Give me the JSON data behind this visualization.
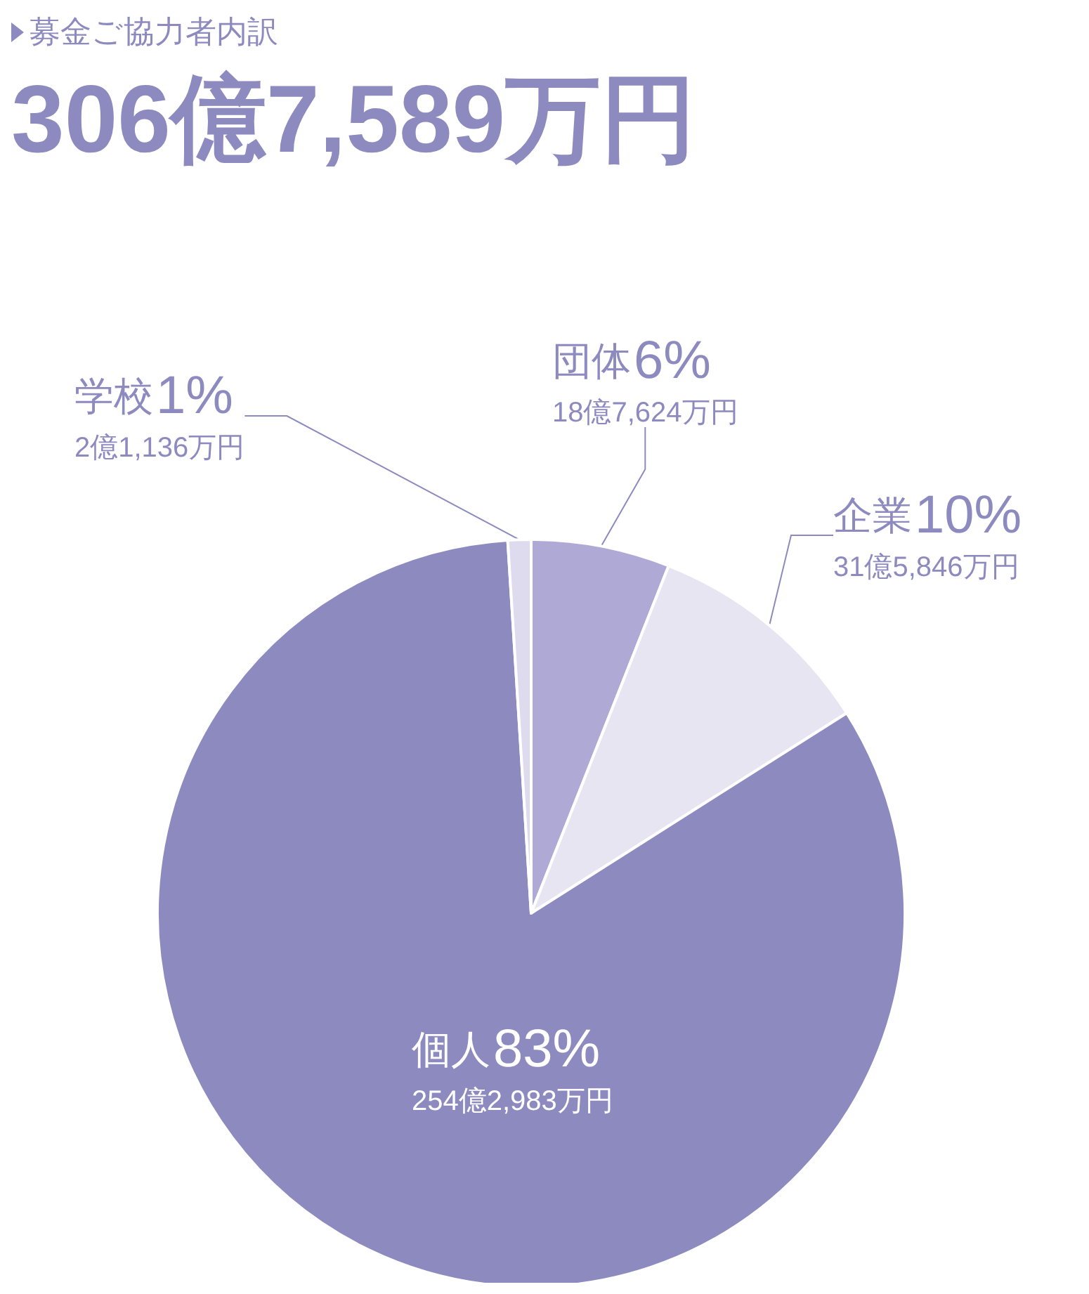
{
  "chart_data": {
    "type": "pie",
    "title": "募金ご協力者内訳",
    "subtitle": "306億7,589万円",
    "categories": [
      "団体",
      "企業",
      "個人",
      "学校"
    ],
    "values": [
      6,
      10,
      83,
      1
    ],
    "colors": [
      "#aeaad5",
      "#e8e5f3",
      "#8d8ac0",
      "#dedbef"
    ],
    "value_labels": [
      "6%",
      "10%",
      "83%",
      "1%"
    ],
    "annotations": [
      {
        "text": "18億7,624万円",
        "x": "団体"
      },
      {
        "text": "31億5,846万円",
        "x": "企業"
      },
      {
        "text": "254億2,983万円",
        "x": "個人"
      },
      {
        "text": "2億1,136万円",
        "x": "学校"
      }
    ]
  }
}
